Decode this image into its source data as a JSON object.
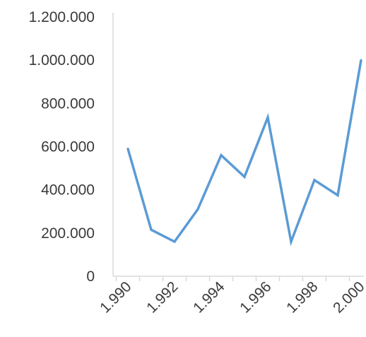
{
  "chart_data": {
    "type": "line",
    "x": [
      1990,
      1991,
      1992,
      1993,
      1994,
      1995,
      1996,
      1997,
      1998,
      1999,
      2000
    ],
    "x_tick_labels": [
      "1.990",
      "1.992",
      "1.994",
      "1.996",
      "1.998",
      "2.000"
    ],
    "x_tick_values": [
      1990,
      1992,
      1994,
      1996,
      1998,
      2000
    ],
    "y_tick_labels": [
      "0",
      "200.000",
      "400.000",
      "600.000",
      "800.000",
      "1.000.000",
      "1.200.000"
    ],
    "y_tick_values": [
      0,
      200000,
      400000,
      600000,
      800000,
      1000000,
      1200000
    ],
    "ylim": [
      0,
      1200000
    ],
    "series": [
      {
        "values": [
          590000,
          215000,
          160000,
          310000,
          560000,
          460000,
          735000,
          160000,
          445000,
          375000,
          1000000
        ],
        "color": "#5b9bd5"
      }
    ],
    "title": "",
    "xlabel": "",
    "ylabel": "",
    "grid": false,
    "legend": "none",
    "axis_color": "#d9d9d9"
  }
}
